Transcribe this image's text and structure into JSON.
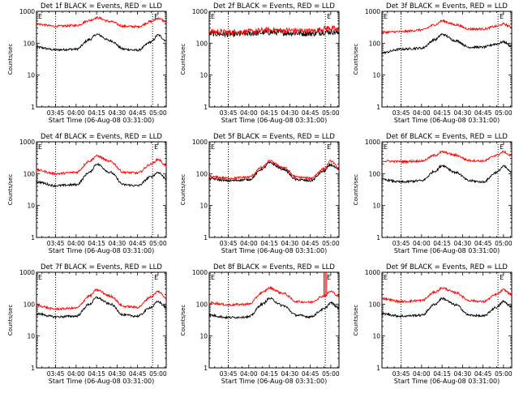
{
  "colors": {
    "events": "#000000",
    "lld": "#ff0000",
    "axis": "#000000",
    "background": "#ffffff"
  },
  "chart_data": [
    {
      "type": "line",
      "detector": "1f",
      "title": "Det 1f BLACK = Events, RED = LLD",
      "xlabel": "Start Time (06-Aug-08 03:31:00)",
      "ylabel": "Counts/sec",
      "yscale": "log",
      "ylim": [
        1,
        1000
      ],
      "x_ticks": [
        "03:45",
        "04:00",
        "04:15",
        "04:30",
        "04:45",
        "05:00"
      ],
      "y_ticks": [
        "1",
        "10",
        "100",
        "1000"
      ],
      "markers": [
        "03:45",
        "04:56"
      ],
      "flag_left": "E",
      "flag_right": "E",
      "series": [
        {
          "key": "events",
          "x": [
            "03:31",
            "03:45",
            "04:00",
            "04:10",
            "04:15",
            "04:25",
            "04:35",
            "04:45",
            "04:55",
            "05:00",
            "05:06"
          ],
          "values": [
            75,
            62,
            65,
            130,
            190,
            120,
            65,
            60,
            110,
            180,
            120
          ]
        },
        {
          "key": "lld",
          "x": [
            "03:31",
            "03:45",
            "04:00",
            "04:10",
            "04:15",
            "04:25",
            "04:35",
            "04:45",
            "04:55",
            "05:00",
            "05:06"
          ],
          "values": [
            400,
            340,
            360,
            520,
            630,
            480,
            340,
            330,
            480,
            600,
            480
          ]
        }
      ]
    },
    {
      "type": "line",
      "detector": "2f",
      "title": "Det 2f BLACK = Events, RED = LLD",
      "xlabel": "Start Time (06-Aug-08 03:31:00)",
      "ylabel": "Counts/sec",
      "yscale": "log",
      "ylim": [
        1,
        1000
      ],
      "x_ticks": [
        "03:45",
        "04:00",
        "04:15",
        "04:30",
        "04:45",
        "05:00"
      ],
      "y_ticks": [
        "1",
        "10",
        "100",
        "1000"
      ],
      "markers": [
        "03:45",
        "04:56"
      ],
      "flag_left": "E",
      "flag_right": "E",
      "series": [
        {
          "key": "events",
          "x": [
            "03:31",
            "03:45",
            "04:00",
            "04:15",
            "04:30",
            "04:45",
            "05:00",
            "05:06"
          ],
          "values": [
            200,
            190,
            200,
            220,
            210,
            200,
            230,
            210
          ]
        },
        {
          "key": "lld",
          "x": [
            "03:31",
            "03:45",
            "04:00",
            "04:15",
            "04:30",
            "04:45",
            "05:00",
            "05:06"
          ],
          "values": [
            230,
            220,
            230,
            260,
            250,
            240,
            300,
            260
          ]
        }
      ]
    },
    {
      "type": "line",
      "detector": "3f",
      "title": "Det 3f BLACK = Events, RED = LLD",
      "xlabel": "Start Time (06-Aug-08 03:31:00)",
      "ylabel": "Counts/sec",
      "yscale": "log",
      "ylim": [
        1,
        1000
      ],
      "x_ticks": [
        "03:45",
        "04:00",
        "04:15",
        "04:30",
        "04:45",
        "05:00"
      ],
      "y_ticks": [
        "1",
        "10",
        "100",
        "1000"
      ],
      "markers": [
        "03:45",
        "04:56"
      ],
      "flag_left": "E",
      "flag_right": "E",
      "series": [
        {
          "key": "events",
          "x": [
            "03:31",
            "03:45",
            "04:00",
            "04:10",
            "04:15",
            "04:25",
            "04:35",
            "04:45",
            "04:55",
            "05:00",
            "05:06"
          ],
          "values": [
            50,
            65,
            70,
            130,
            190,
            120,
            75,
            75,
            95,
            110,
            80
          ]
        },
        {
          "key": "lld",
          "x": [
            "03:31",
            "03:45",
            "04:00",
            "04:10",
            "04:15",
            "04:25",
            "04:35",
            "04:45",
            "04:55",
            "05:00",
            "05:06"
          ],
          "values": [
            220,
            230,
            260,
            380,
            500,
            380,
            280,
            280,
            340,
            400,
            320
          ]
        }
      ]
    },
    {
      "type": "line",
      "detector": "4f",
      "title": "Det 4f BLACK = Events, RED = LLD",
      "xlabel": "Start Time (06-Aug-08 03:31:00)",
      "ylabel": "Counts/sec",
      "yscale": "log",
      "ylim": [
        1,
        1000
      ],
      "x_ticks": [
        "03:45",
        "04:00",
        "04:15",
        "04:30",
        "04:45",
        "05:00"
      ],
      "y_ticks": [
        "1",
        "10",
        "100",
        "1000"
      ],
      "markers": [
        "03:45",
        "04:56"
      ],
      "flag_left": "E",
      "flag_right": "E",
      "series": [
        {
          "key": "events",
          "x": [
            "03:31",
            "03:45",
            "04:00",
            "04:10",
            "04:15",
            "04:25",
            "04:35",
            "04:45",
            "04:55",
            "05:00",
            "05:06"
          ],
          "values": [
            55,
            42,
            45,
            110,
            200,
            110,
            45,
            42,
            80,
            110,
            70
          ]
        },
        {
          "key": "lld",
          "x": [
            "03:31",
            "03:45",
            "04:00",
            "04:10",
            "04:15",
            "04:25",
            "04:35",
            "04:45",
            "04:55",
            "05:00",
            "05:06"
          ],
          "values": [
            130,
            100,
            110,
            250,
            360,
            240,
            110,
            105,
            200,
            280,
            180
          ]
        }
      ]
    },
    {
      "type": "line",
      "detector": "5f",
      "title": "Det 5f BLACK = Events, RED = LLD",
      "xlabel": "Start Time (06-Aug-08 03:31:00)",
      "ylabel": "Counts/sec",
      "yscale": "log",
      "ylim": [
        1,
        1000
      ],
      "x_ticks": [
        "03:45",
        "04:00",
        "04:15",
        "04:30",
        "04:45",
        "05:00"
      ],
      "y_ticks": [
        "1",
        "10",
        "100",
        "1000"
      ],
      "markers": [
        "03:45",
        "04:56"
      ],
      "flag_left": "E",
      "flag_right": "E",
      "series": [
        {
          "key": "events",
          "x": [
            "03:31",
            "03:45",
            "04:00",
            "04:10",
            "04:15",
            "04:25",
            "04:35",
            "04:45",
            "04:55",
            "05:00",
            "05:06"
          ],
          "values": [
            70,
            60,
            65,
            140,
            220,
            140,
            65,
            60,
            120,
            190,
            130
          ]
        },
        {
          "key": "lld",
          "x": [
            "03:31",
            "03:45",
            "04:00",
            "04:10",
            "04:15",
            "04:25",
            "04:35",
            "04:45",
            "04:55",
            "05:00",
            "05:06"
          ],
          "values": [
            80,
            72,
            78,
            160,
            250,
            160,
            78,
            72,
            140,
            250,
            150
          ]
        }
      ]
    },
    {
      "type": "line",
      "detector": "6f",
      "title": "Det 6f BLACK = Events, RED = LLD",
      "xlabel": "Start Time (06-Aug-08 03:31:00)",
      "ylabel": "Counts/sec",
      "yscale": "log",
      "ylim": [
        1,
        1000
      ],
      "x_ticks": [
        "03:45",
        "04:00",
        "04:15",
        "04:30",
        "04:45",
        "05:00"
      ],
      "y_ticks": [
        "1",
        "10",
        "100",
        "1000"
      ],
      "markers": [
        "03:45",
        "04:56"
      ],
      "flag_left": "E",
      "flag_right": "E",
      "series": [
        {
          "key": "events",
          "x": [
            "03:31",
            "03:45",
            "04:00",
            "04:10",
            "04:15",
            "04:25",
            "04:35",
            "04:45",
            "04:55",
            "05:00",
            "05:06"
          ],
          "values": [
            65,
            55,
            60,
            120,
            180,
            110,
            60,
            55,
            110,
            170,
            110
          ]
        },
        {
          "key": "lld",
          "x": [
            "03:31",
            "03:45",
            "04:00",
            "04:10",
            "04:15",
            "04:25",
            "04:35",
            "04:45",
            "04:55",
            "05:00",
            "05:06"
          ],
          "values": [
            250,
            240,
            250,
            380,
            480,
            380,
            260,
            250,
            380,
            480,
            360
          ]
        }
      ]
    },
    {
      "type": "line",
      "detector": "7f",
      "title": "Det 7f BLACK = Events, RED = LLD",
      "xlabel": "Start Time (06-Aug-08 03:31:00)",
      "ylabel": "Counts/sec",
      "yscale": "log",
      "ylim": [
        1,
        1000
      ],
      "x_ticks": [
        "03:45",
        "04:00",
        "04:15",
        "04:30",
        "04:45",
        "05:00"
      ],
      "y_ticks": [
        "1",
        "10",
        "100",
        "1000"
      ],
      "markers": [
        "03:45",
        "04:56"
      ],
      "flag_left": "E",
      "flag_right": "E",
      "series": [
        {
          "key": "events",
          "x": [
            "03:31",
            "03:45",
            "04:00",
            "04:10",
            "04:15",
            "04:25",
            "04:35",
            "04:45",
            "04:55",
            "05:00",
            "05:06"
          ],
          "values": [
            50,
            40,
            42,
            100,
            160,
            100,
            45,
            42,
            80,
            120,
            80
          ]
        },
        {
          "key": "lld",
          "x": [
            "03:31",
            "03:45",
            "04:00",
            "04:10",
            "04:15",
            "04:25",
            "04:35",
            "04:45",
            "04:55",
            "05:00",
            "05:06"
          ],
          "values": [
            90,
            70,
            75,
            180,
            280,
            180,
            85,
            80,
            170,
            250,
            160
          ]
        }
      ]
    },
    {
      "type": "line",
      "detector": "8f",
      "title": "Det 8f BLACK = Events, RED = LLD",
      "xlabel": "Start Time (06-Aug-08 03:31:00)",
      "ylabel": "Counts/sec",
      "yscale": "log",
      "ylim": [
        1,
        1000
      ],
      "x_ticks": [
        "03:45",
        "04:00",
        "04:15",
        "04:30",
        "04:45",
        "05:00"
      ],
      "y_ticks": [
        "1",
        "10",
        "100",
        "1000"
      ],
      "markers": [
        "03:45",
        "04:56"
      ],
      "flag_left": "E",
      "flag_right": "E",
      "spikes": [
        {
          "x": "04:55",
          "values": [
            1000
          ]
        },
        {
          "x": "04:56",
          "values": [
            1000
          ]
        },
        {
          "x": "04:57",
          "values": [
            1000
          ]
        }
      ],
      "series": [
        {
          "key": "events",
          "x": [
            "03:31",
            "03:45",
            "04:00",
            "04:10",
            "04:15",
            "04:25",
            "04:35",
            "04:45",
            "04:55",
            "05:00",
            "05:06"
          ],
          "values": [
            45,
            38,
            40,
            100,
            150,
            90,
            45,
            40,
            70,
            110,
            75
          ]
        },
        {
          "key": "lld",
          "x": [
            "03:31",
            "03:45",
            "04:00",
            "04:10",
            "04:15",
            "04:25",
            "04:35",
            "04:45",
            "04:55",
            "05:00",
            "05:06"
          ],
          "values": [
            110,
            95,
            100,
            230,
            320,
            220,
            120,
            115,
            180,
            250,
            180
          ]
        }
      ]
    },
    {
      "type": "line",
      "detector": "9f",
      "title": "Det 9f BLACK = Events, RED = LLD",
      "xlabel": "Start Time (06-Aug-08 03:31:00)",
      "ylabel": "Counts/sec",
      "yscale": "log",
      "ylim": [
        1,
        1000
      ],
      "x_ticks": [
        "03:45",
        "04:00",
        "04:15",
        "04:30",
        "04:45",
        "05:00"
      ],
      "y_ticks": [
        "1",
        "10",
        "100",
        "1000"
      ],
      "markers": [
        "03:45",
        "04:56"
      ],
      "flag_left": "E",
      "flag_right": "E",
      "series": [
        {
          "key": "events",
          "x": [
            "03:31",
            "03:45",
            "04:00",
            "04:10",
            "04:15",
            "04:25",
            "04:35",
            "04:45",
            "04:55",
            "05:00",
            "05:06"
          ],
          "values": [
            50,
            42,
            45,
            100,
            150,
            95,
            45,
            42,
            80,
            120,
            80
          ]
        },
        {
          "key": "lld",
          "x": [
            "03:31",
            "03:45",
            "04:00",
            "04:10",
            "04:15",
            "04:25",
            "04:35",
            "04:45",
            "04:55",
            "05:00",
            "05:06"
          ],
          "values": [
            150,
            120,
            130,
            240,
            320,
            230,
            130,
            120,
            200,
            280,
            200
          ]
        }
      ]
    }
  ]
}
